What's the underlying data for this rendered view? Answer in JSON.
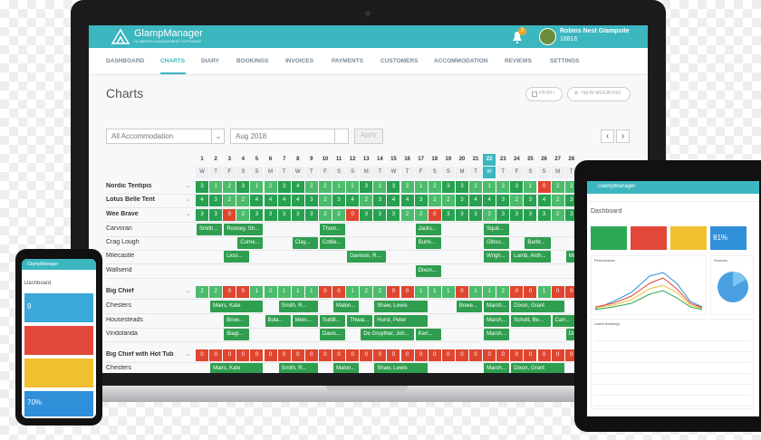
{
  "laptop": {
    "header": {
      "app_name": "GlampManager",
      "tagline": "GLAMPING MANAGEMENT SOFTWARE",
      "notifications": 2,
      "site_name": "Robins Nest Glampsite",
      "site_id": 18816
    },
    "nav": {
      "items": [
        "DASHBOARD",
        "CHARTS",
        "DIARY",
        "BOOKINGS",
        "INVOICES",
        "PAYMENTS",
        "CUSTOMERS",
        "ACCOMMODATION",
        "REVIEWS",
        "SETTINGS"
      ],
      "active_index": 1
    },
    "page_title": "Charts",
    "buttons": [
      "PRINT",
      "NEW BOOKING"
    ],
    "filters": {
      "accommodation": "All Accommodation",
      "month": "Aug 2018",
      "apply": "Apply"
    },
    "calendar": {
      "days": [
        1,
        2,
        3,
        4,
        5,
        6,
        7,
        8,
        9,
        10,
        11,
        12,
        13,
        14,
        15,
        16,
        17,
        18,
        19,
        20,
        21,
        22,
        23,
        24,
        25,
        26,
        27,
        28
      ],
      "weekdays": [
        "W",
        "T",
        "F",
        "S",
        "S",
        "M",
        "T",
        "W",
        "T",
        "F",
        "S",
        "S",
        "M",
        "T",
        "W",
        "T",
        "F",
        "S",
        "S",
        "M",
        "T",
        "W",
        "T",
        "F",
        "S",
        "S",
        "M",
        "T"
      ],
      "highlight_day": 22,
      "rows": [
        {
          "name": "Nordic Tentipis",
          "availability": [
            3,
            1,
            2,
            3,
            1,
            2,
            3,
            4,
            2,
            2,
            1,
            2,
            3,
            1,
            3,
            2,
            1,
            2,
            3,
            3,
            2,
            1,
            2,
            3,
            1,
            0,
            2,
            2
          ]
        },
        {
          "name": "Lotus Belle Tent",
          "availability": [
            4,
            3,
            2,
            2,
            4,
            4,
            4,
            4,
            3,
            2,
            3,
            4,
            2,
            3,
            4,
            4,
            3,
            2,
            2,
            3,
            4,
            4,
            3,
            2,
            3,
            4,
            2,
            3
          ]
        },
        {
          "name": "Wee Brave",
          "availability": [
            3,
            3,
            0,
            2,
            3,
            3,
            3,
            3,
            3,
            2,
            2,
            0,
            3,
            3,
            3,
            2,
            2,
            0,
            3,
            3,
            3,
            2,
            3,
            3,
            3,
            3,
            2,
            3
          ]
        },
        {
          "name": "Carvoran",
          "bookings": [
            {
              "name": "Smith...",
              "start": 1,
              "end": 2
            },
            {
              "name": "Rooney, Sh...",
              "start": 3,
              "end": 5
            },
            {
              "name": "Thom...",
              "start": 10,
              "end": 11
            },
            {
              "name": "Jacks...",
              "start": 17,
              "end": 18
            },
            {
              "name": "Squir...",
              "start": 22,
              "end": 23
            }
          ]
        },
        {
          "name": "Crag Lough",
          "bookings": [
            {
              "name": "Curne...",
              "start": 4,
              "end": 5
            },
            {
              "name": "Clay...",
              "start": 8,
              "end": 9
            },
            {
              "name": "Cottie...",
              "start": 10,
              "end": 11
            },
            {
              "name": "Burni...",
              "start": 17,
              "end": 18
            },
            {
              "name": "Gibso...",
              "start": 22,
              "end": 23
            },
            {
              "name": "Barbr...",
              "start": 25,
              "end": 26
            }
          ]
        },
        {
          "name": "Milecastle",
          "bookings": [
            {
              "name": "Liosi...",
              "start": 3,
              "end": 4
            },
            {
              "name": "Davison, R...",
              "start": 12,
              "end": 14
            },
            {
              "name": "Wrigh...",
              "start": 22,
              "end": 23
            },
            {
              "name": "Lamb, Anth...",
              "start": 24,
              "end": 26
            },
            {
              "name": "Moo...",
              "start": 28,
              "end": 28
            }
          ]
        },
        {
          "name": "Wallsend",
          "bookings": [
            {
              "name": "Dixon...",
              "start": 17,
              "end": 18
            }
          ]
        },
        {
          "name": "Big Chief",
          "availability": [
            2,
            2,
            0,
            0,
            1,
            2,
            1,
            1,
            1,
            0,
            0,
            1,
            2,
            2,
            0,
            0,
            1,
            1,
            1,
            0,
            1,
            1,
            2,
            0,
            0,
            1,
            0,
            0
          ]
        },
        {
          "name": "Chesters",
          "bookings": [
            {
              "name": "Mairs, Kate",
              "start": 2,
              "end": 5
            },
            {
              "name": "Smith, R...",
              "start": 7,
              "end": 9
            },
            {
              "name": "Malon...",
              "start": 11,
              "end": 12
            },
            {
              "name": "Shaw, Lewis",
              "start": 14,
              "end": 17
            },
            {
              "name": "Bowe...",
              "start": 20,
              "end": 21
            },
            {
              "name": "Marsh...",
              "start": 22,
              "end": 23
            },
            {
              "name": "Dixon, Grant",
              "start": 24,
              "end": 27
            }
          ]
        },
        {
          "name": "Housesteads",
          "bookings": [
            {
              "name": "Brow...",
              "start": 3,
              "end": 4
            },
            {
              "name": "Bola...",
              "start": 6,
              "end": 7
            },
            {
              "name": "Mein...",
              "start": 8,
              "end": 9
            },
            {
              "name": "Suttill...",
              "start": 10,
              "end": 11
            },
            {
              "name": "Thwai...",
              "start": 12,
              "end": 13
            },
            {
              "name": "Hurst, Peter",
              "start": 14,
              "end": 17
            },
            {
              "name": "Marsh...",
              "start": 22,
              "end": 23
            },
            {
              "name": "Schott, Be...",
              "start": 24,
              "end": 26
            },
            {
              "name": "Carr...",
              "start": 27,
              "end": 28
            }
          ]
        },
        {
          "name": "Vindolanda",
          "bookings": [
            {
              "name": "Biagi...",
              "start": 3,
              "end": 4
            },
            {
              "name": "Davis...",
              "start": 10,
              "end": 11
            },
            {
              "name": "De Gruyther, Joh...",
              "start": 13,
              "end": 16
            },
            {
              "name": "Kerr...",
              "start": 17,
              "end": 18
            },
            {
              "name": "Marsh...",
              "start": 22,
              "end": 23
            },
            {
              "name": "Di...",
              "start": 28,
              "end": 28
            }
          ]
        },
        {
          "name": "Big Chief with Hot Tub",
          "availability": [
            0,
            0,
            0,
            0,
            0,
            0,
            0,
            0,
            0,
            0,
            0,
            0,
            0,
            0,
            0,
            0,
            0,
            0,
            0,
            0,
            0,
            0,
            0,
            0,
            0,
            0,
            0,
            0
          ]
        },
        {
          "name": "Chesters",
          "bookings": [
            {
              "name": "Mairs, Kate",
              "start": 2,
              "end": 5
            },
            {
              "name": "Smith, R...",
              "start": 7,
              "end": 9
            },
            {
              "name": "Malon...",
              "start": 11,
              "end": 12
            },
            {
              "name": "Shaw, Lewis",
              "start": 14,
              "end": 17
            },
            {
              "name": "Marsh...",
              "start": 22,
              "end": 23
            },
            {
              "name": "Dixon, Grant",
              "start": 24,
              "end": 27
            }
          ]
        }
      ]
    }
  },
  "tablet": {
    "app_name": "GlampManager",
    "title": "Dashboard",
    "tile_value": "81%",
    "panels": [
      "Performance",
      "Sources",
      "Latest Bookings"
    ]
  },
  "phone": {
    "app_name": "GlampManager",
    "title": "Dashboard",
    "tiles": [
      "9",
      "70%"
    ]
  }
}
